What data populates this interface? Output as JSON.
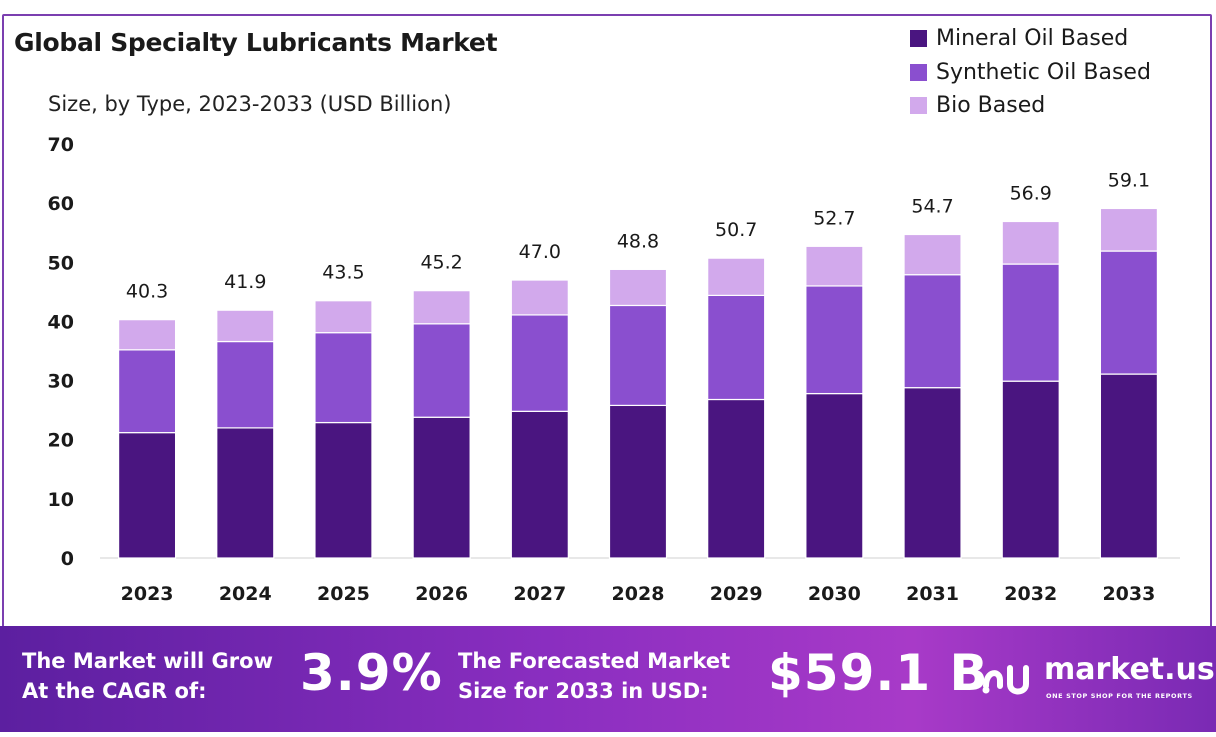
{
  "chart_data": {
    "type": "bar",
    "stacked": true,
    "title": "Global Specialty Lubricants Market",
    "subtitle": "Size, by Type, 2023-2033 (USD Billion)",
    "categories": [
      "2023",
      "2024",
      "2025",
      "2026",
      "2027",
      "2028",
      "2029",
      "2030",
      "2031",
      "2032",
      "2033"
    ],
    "series": [
      {
        "name": "Mineral Oil Based",
        "color": "#4a1580",
        "values": [
          21.2,
          22.0,
          22.9,
          23.8,
          24.8,
          25.8,
          26.8,
          27.8,
          28.8,
          29.9,
          31.1
        ]
      },
      {
        "name": "Synthetic Oil Based",
        "color": "#8a4fcf",
        "values": [
          14.0,
          14.6,
          15.2,
          15.8,
          16.3,
          16.9,
          17.6,
          18.2,
          19.1,
          19.8,
          20.8
        ]
      },
      {
        "name": "Bio Based",
        "color": "#d2a9ec",
        "values": [
          5.1,
          5.3,
          5.4,
          5.6,
          5.9,
          6.1,
          6.3,
          6.7,
          6.8,
          7.2,
          7.2
        ]
      }
    ],
    "totals": [
      "40.3",
      "41.9",
      "43.5",
      "45.2",
      "47.0",
      "48.8",
      "50.7",
      "52.7",
      "54.7",
      "56.9",
      "59.1"
    ],
    "yticks": [
      "0",
      "10",
      "20",
      "30",
      "40",
      "50",
      "60",
      "70"
    ],
    "ylim": [
      0,
      70
    ],
    "legend_position": "top-right",
    "grid": false
  },
  "banner": {
    "cagr_text": [
      "The Market will Grow",
      "At the CAGR of:"
    ],
    "cagr_value": "3.9%",
    "forecast_text": [
      "The Forecasted Market",
      "Size for 2033 in USD:"
    ],
    "forecast_value": "$59.1 B",
    "logo_name": "market.us",
    "logo_tagline": "ONE STOP SHOP FOR THE REPORTS"
  }
}
